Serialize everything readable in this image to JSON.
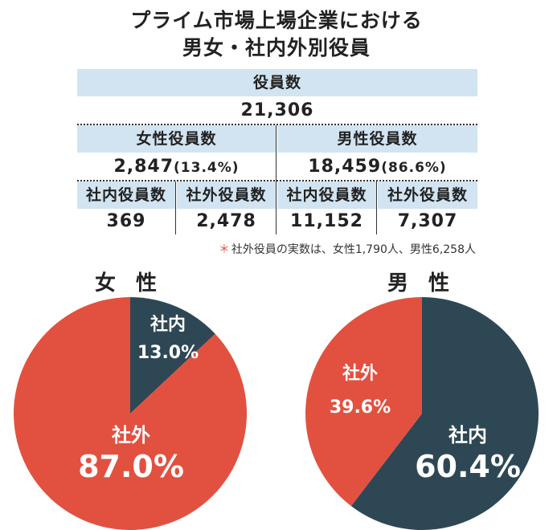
{
  "title_line1": "プライム市場上場企業における",
  "title_line2": "男女・社内外別役員",
  "table": {
    "total_label": "役員数",
    "total_value": "21,306",
    "female_label": "女性役員数",
    "female_value": "2,847",
    "female_pct": "(13.4%)",
    "male_label": "男性役員数",
    "male_value": "18,459",
    "male_pct": "(86.6%)",
    "female_inside_label": "社内役員数",
    "female_inside_value": "369",
    "female_outside_label": "社外役員数",
    "female_outside_value": "2,478",
    "male_inside_label": "社内役員数",
    "male_inside_value": "11,152",
    "male_outside_label": "社外役員数",
    "male_outside_value": "7,307"
  },
  "note_mark": "＊",
  "note": "社外役員の実数は、女性1,790人、男性6,258人",
  "colors": {
    "inside": "#2e4755",
    "outside": "#e2513f",
    "header_bg": "#d2e4f1"
  },
  "chart_data": [
    {
      "type": "pie",
      "title": "女 性",
      "labels": [
        "社内",
        "社外"
      ],
      "values": [
        13.0,
        87.0
      ],
      "value_labels": [
        "13.0%",
        "87.0%"
      ]
    },
    {
      "type": "pie",
      "title": "男 性",
      "labels": [
        "社内",
        "社外"
      ],
      "values": [
        60.4,
        39.6
      ],
      "value_labels": [
        "60.4%",
        "39.6%"
      ]
    }
  ]
}
